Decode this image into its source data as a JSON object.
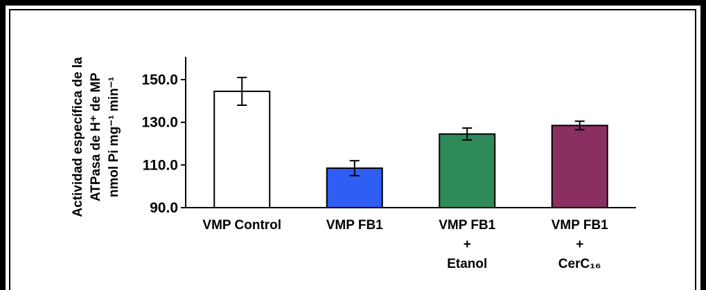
{
  "chart_data": {
    "type": "bar",
    "title": "",
    "xlabel": "",
    "ylabel_lines": [
      "Actividad específica de la",
      "ATPasa de H⁺ de MP",
      "nmol Pi mg⁻¹ min⁻¹"
    ],
    "categories": [
      [
        "VMP Control"
      ],
      [
        "VMP FB1"
      ],
      [
        "VMP FB1",
        "+",
        "Etanol"
      ],
      [
        "VMP FB1",
        "+",
        "CerC₁₆"
      ]
    ],
    "values": [
      144.5,
      108.5,
      124.5,
      128.5
    ],
    "errors": [
      6.5,
      3.5,
      2.8,
      2.0
    ],
    "colors": [
      "#ffffff",
      "#2f5ef5",
      "#2f8a5a",
      "#8a2f62"
    ],
    "ylim": [
      90.0,
      150.0
    ],
    "yticks": [
      "90.0",
      "110.0",
      "130.0",
      "150.0"
    ],
    "grid": false,
    "legend": "none"
  }
}
